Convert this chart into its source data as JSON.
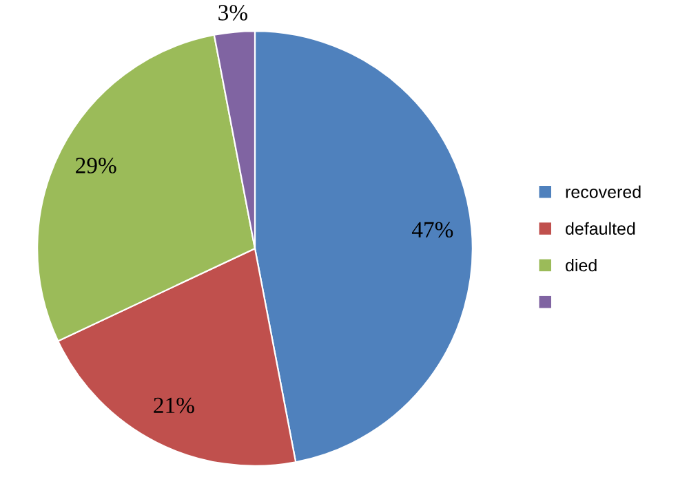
{
  "chart_data": {
    "type": "pie",
    "categories": [
      "recovered",
      "defaulted",
      "died",
      null
    ],
    "values": [
      47,
      21,
      29,
      3
    ],
    "colors": [
      "#4f81bd",
      "#c0504d",
      "#9bbb59",
      "#8064a2"
    ],
    "value_labels": [
      "47%",
      "21%",
      "29%",
      "3%"
    ],
    "legend": "right"
  }
}
